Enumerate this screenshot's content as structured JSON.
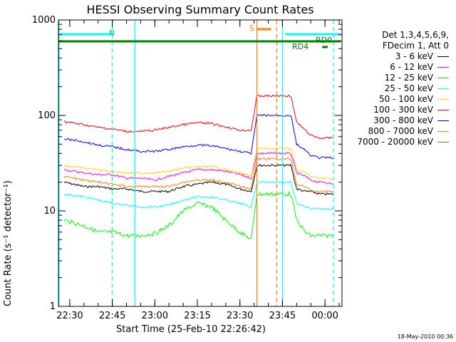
{
  "title": "HESSI Observing Summary Count Rates",
  "xlabel": "Start Time (25-Feb-10 22:26:42)",
  "ylabel": "Count Rate (s⁻¹ detector⁻¹)",
  "stamp": "18-May-2010 00:36",
  "legend_header": [
    "Det 1,3,4,5,6,9,",
    "FDecim 1, Att 0"
  ],
  "flags": {
    "night": "N",
    "saa": "S",
    "rd0": "RD0",
    "rd4": "RD4"
  },
  "colors": {
    "n_bar": "#00ffff",
    "s_bar": "#ff7f00",
    "rd0_bar": "#008000",
    "rd4_bar": "#008000"
  },
  "chart_data": {
    "type": "line",
    "title": "HESSI Observing Summary Count Rates",
    "xlabel": "Start Time (25-Feb-10 22:26:42)",
    "ylabel": "Count Rate (s⁻¹ detector⁻¹)",
    "yscale": "log",
    "ylim": [
      1,
      1000
    ],
    "xlim": [
      "22:26:42",
      "00:06:42"
    ],
    "xticks": [
      "22:30",
      "22:45",
      "23:00",
      "23:15",
      "23:30",
      "23:45",
      "00:00"
    ],
    "yticks": [
      "1",
      "10",
      "100",
      "1000"
    ],
    "x": [
      "22:28",
      "22:35",
      "22:40",
      "22:45",
      "22:50",
      "22:55",
      "23:00",
      "23:05",
      "23:10",
      "23:15",
      "23:20",
      "23:25",
      "23:30",
      "23:34",
      "23:36",
      "23:48",
      "23:50",
      "23:53",
      "23:55",
      "23:58",
      "00:00",
      "00:03"
    ],
    "series": [
      {
        "name": "3 - 6 keV",
        "color": "#000000",
        "values": [
          20,
          18,
          18,
          17,
          17,
          16,
          16,
          16,
          18,
          19,
          20,
          19,
          17,
          16,
          30,
          30,
          17,
          16,
          16,
          15,
          15,
          15
        ]
      },
      {
        "name": "6 - 12 keV",
        "color": "#ff00ff",
        "values": [
          27,
          25,
          24,
          24,
          22,
          22,
          21,
          23,
          25,
          27,
          27,
          26,
          24,
          22,
          40,
          40,
          25,
          23,
          21,
          20,
          20,
          19
        ]
      },
      {
        "name": "12 - 25 keV",
        "color": "#00ff00",
        "values": [
          8,
          7,
          6,
          6,
          5.5,
          5.5,
          5.8,
          7,
          10,
          12,
          11,
          8,
          6,
          5,
          15,
          15,
          8,
          6,
          5.5,
          5.5,
          5.5,
          5.5
        ]
      },
      {
        "name": "25 - 50 keV",
        "color": "#00ffff",
        "values": [
          15,
          14,
          13,
          12,
          11.5,
          11,
          11,
          11.5,
          13,
          14,
          14,
          13,
          12,
          11,
          20,
          20,
          12,
          11,
          10.5,
          10.5,
          10.5,
          10.5
        ]
      },
      {
        "name": "50 - 100 keV",
        "color": "#ffd700",
        "values": [
          30,
          28,
          27,
          26,
          25,
          25,
          25,
          26,
          28,
          29,
          29,
          27,
          25,
          23,
          45,
          45,
          27,
          25,
          23,
          22,
          22,
          22
        ]
      },
      {
        "name": "100 - 300 keV",
        "color": "#ff0000",
        "values": [
          86,
          80,
          75,
          72,
          68,
          68,
          70,
          75,
          80,
          84,
          82,
          76,
          70,
          70,
          160,
          160,
          85,
          70,
          62,
          58,
          58,
          58
        ]
      },
      {
        "name": "300 - 800 keV",
        "color": "#0000ff",
        "values": [
          57,
          53,
          49,
          47,
          44,
          42,
          42,
          44,
          47,
          49,
          48,
          45,
          42,
          40,
          100,
          100,
          50,
          43,
          38,
          36,
          36,
          36
        ]
      },
      {
        "name": "800 - 7000 keV",
        "color": "#ff7f00",
        "values": [
          23,
          21,
          20,
          19,
          18,
          18,
          18,
          18,
          20,
          21,
          21,
          20,
          18,
          17,
          35,
          35,
          19,
          18,
          16,
          16,
          16,
          16
        ]
      },
      {
        "name": "7000 - 20000 keV",
        "color": "#808000",
        "values": [
          null,
          null,
          null,
          null,
          null,
          null,
          null,
          null,
          null,
          null,
          null,
          null,
          null,
          null,
          null,
          null,
          null,
          null,
          null,
          null,
          null,
          null
        ]
      }
    ]
  }
}
